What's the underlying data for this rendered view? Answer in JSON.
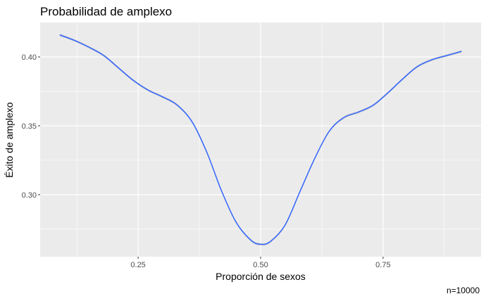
{
  "chart_data": {
    "type": "line",
    "title": "Probabilidad de amplexo",
    "xlabel": "Proporción de sexos",
    "ylabel": "Éxito de amplexo",
    "caption": "n=10000",
    "xlim": [
      0.05,
      0.95
    ],
    "ylim": [
      0.255,
      0.425
    ],
    "x_ticks": [
      0.25,
      0.5,
      0.75
    ],
    "x_tick_labels": [
      "0.25",
      "0.50",
      "0.75"
    ],
    "y_ticks": [
      0.3,
      0.35,
      0.4
    ],
    "y_tick_labels": [
      "0.30",
      "0.35",
      "0.40"
    ],
    "grid": true,
    "series": [
      {
        "color": "#3366ff",
        "ribbon_color": "#999999",
        "x": [
          0.09,
          0.12,
          0.15,
          0.18,
          0.21,
          0.24,
          0.27,
          0.3,
          0.33,
          0.36,
          0.39,
          0.42,
          0.45,
          0.48,
          0.5,
          0.52,
          0.55,
          0.58,
          0.61,
          0.64,
          0.67,
          0.7,
          0.73,
          0.76,
          0.79,
          0.82,
          0.85,
          0.88,
          0.91
        ],
        "y": [
          0.416,
          0.412,
          0.407,
          0.401,
          0.392,
          0.383,
          0.376,
          0.371,
          0.365,
          0.353,
          0.331,
          0.303,
          0.28,
          0.267,
          0.264,
          0.266,
          0.278,
          0.302,
          0.326,
          0.346,
          0.356,
          0.36,
          0.365,
          0.374,
          0.384,
          0.393,
          0.398,
          0.401,
          0.404
        ]
      }
    ]
  }
}
